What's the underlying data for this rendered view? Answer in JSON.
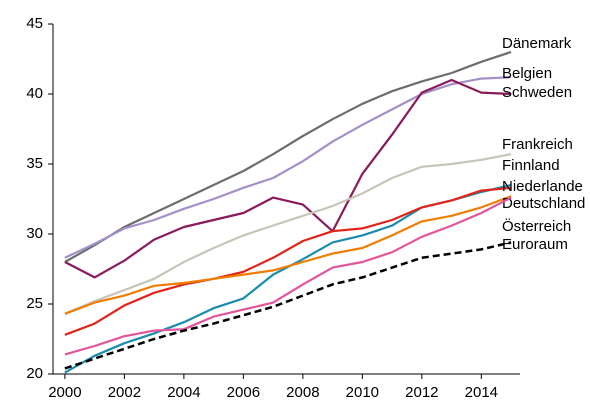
{
  "chart_data": {
    "type": "line",
    "x": [
      2000,
      2001,
      2002,
      2003,
      2004,
      2005,
      2006,
      2007,
      2008,
      2009,
      2010,
      2011,
      2012,
      2013,
      2014,
      2015
    ],
    "xlim": [
      1999.6,
      2015.3
    ],
    "xticks": [
      2000,
      2002,
      2004,
      2006,
      2008,
      2010,
      2012,
      2014
    ],
    "ylim": [
      20,
      45
    ],
    "yticks": [
      20,
      25,
      30,
      35,
      40,
      45
    ],
    "grid": false,
    "series": [
      {
        "name": "Dänemark",
        "color": "#6d6d6d",
        "values": [
          28.0,
          29.2,
          30.5,
          31.5,
          32.5,
          33.5,
          34.5,
          35.7,
          37.0,
          38.2,
          39.3,
          40.2,
          40.9,
          41.5,
          42.3,
          43.0
        ]
      },
      {
        "name": "Belgien",
        "color": "#a58fc8",
        "values": [
          28.3,
          29.3,
          30.4,
          31.0,
          31.8,
          32.5,
          33.3,
          34.0,
          35.2,
          36.6,
          37.8,
          38.9,
          40.0,
          40.7,
          41.1,
          41.2
        ]
      },
      {
        "name": "Schweden",
        "color": "#8b1a5a",
        "values": [
          28.0,
          26.9,
          28.1,
          29.6,
          30.5,
          31.0,
          31.5,
          32.6,
          32.1,
          30.2,
          34.3,
          37.1,
          40.1,
          41.0,
          40.1,
          40.0
        ]
      },
      {
        "name": "Frankreich",
        "color": "#c8c5b8",
        "values": [
          24.3,
          25.2,
          26.0,
          26.8,
          28.0,
          29.0,
          29.9,
          30.6,
          31.3,
          32.0,
          32.9,
          34.0,
          34.8,
          35.0,
          35.3,
          35.7
        ]
      },
      {
        "name": "Finnland",
        "color": "#1a8cb0",
        "values": [
          20.1,
          21.3,
          22.2,
          22.9,
          23.7,
          24.7,
          25.4,
          27.1,
          28.2,
          29.4,
          29.9,
          30.6,
          31.9,
          32.4,
          33.0,
          33.5
        ]
      },
      {
        "name": "Niederlande",
        "color": "#e2231a",
        "values": [
          22.8,
          23.6,
          24.9,
          25.8,
          26.4,
          26.8,
          27.3,
          28.3,
          29.5,
          30.2,
          30.4,
          31.0,
          31.9,
          32.4,
          33.1,
          33.3
        ]
      },
      {
        "name": "Deutschland",
        "color": "#f07d00",
        "values": [
          24.3,
          25.1,
          25.6,
          26.3,
          26.5,
          26.8,
          27.1,
          27.4,
          28.0,
          28.6,
          29.0,
          29.9,
          30.9,
          31.3,
          31.9,
          32.7
        ]
      },
      {
        "name": "Österreich",
        "color": "#e2559a",
        "values": [
          21.4,
          22.0,
          22.7,
          23.1,
          23.2,
          24.1,
          24.6,
          25.1,
          26.4,
          27.6,
          28.0,
          28.7,
          29.8,
          30.6,
          31.5,
          32.6
        ]
      },
      {
        "name": "Euroraum",
        "color": "#000000",
        "dashed": true,
        "values": [
          20.4,
          21.1,
          21.8,
          22.5,
          23.1,
          23.6,
          24.2,
          24.8,
          25.6,
          26.4,
          26.9,
          27.6,
          28.3,
          28.6,
          28.9,
          29.4
        ]
      }
    ]
  }
}
